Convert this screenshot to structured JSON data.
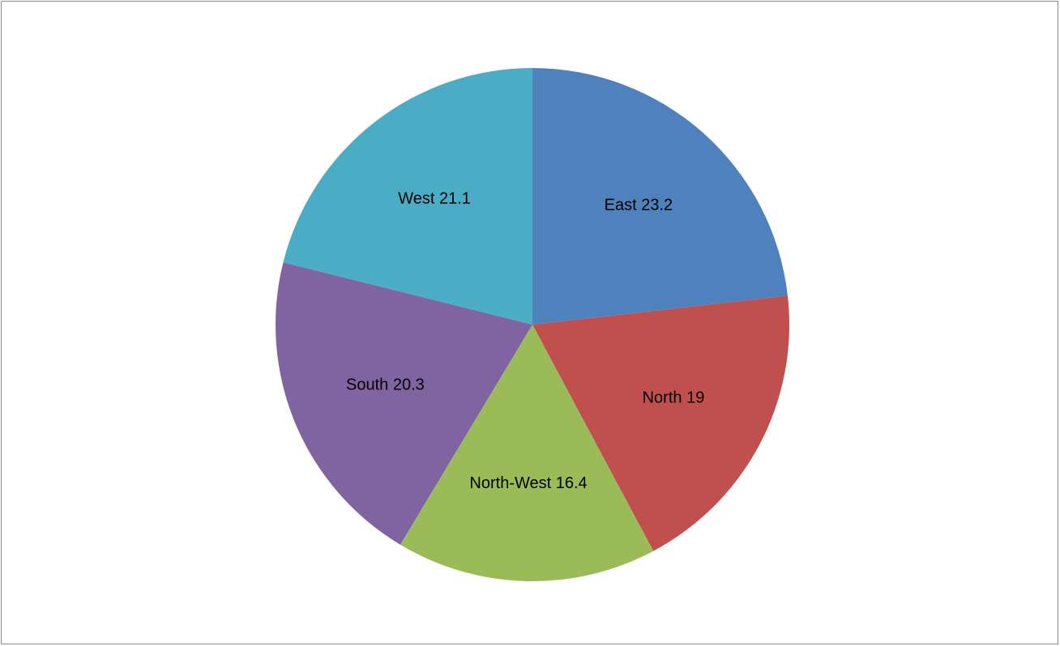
{
  "chart_data": {
    "type": "pie",
    "title": "",
    "start_angle_deg": 0,
    "direction": "clockwise",
    "slices": [
      {
        "name": "East",
        "value": 23.2,
        "color": "#4F81BD",
        "label": "East 23.2"
      },
      {
        "name": "North",
        "value": 19,
        "color": "#C0504D",
        "label": "North 19"
      },
      {
        "name": "North-West",
        "value": 16.4,
        "color": "#9BBB59",
        "label": "North-West 16.4"
      },
      {
        "name": "South",
        "value": 20.3,
        "color": "#8064A2",
        "label": "South 20.3"
      },
      {
        "name": "West",
        "value": 21.1,
        "color": "#4BACC6",
        "label": "West 21.1"
      }
    ],
    "legend": "none"
  }
}
